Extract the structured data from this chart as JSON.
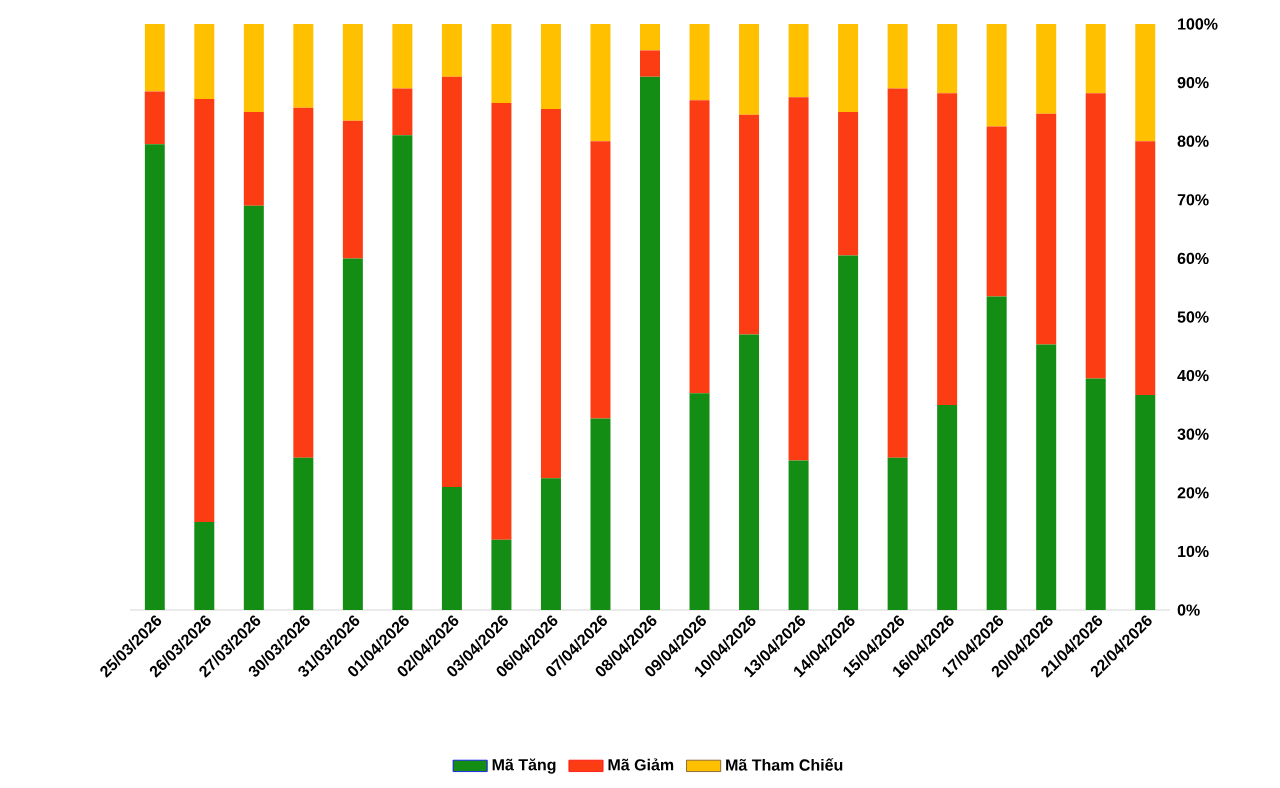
{
  "chart_data": {
    "type": "bar",
    "stacked": true,
    "categories": [
      "25/03/2026",
      "26/03/2026",
      "27/03/2026",
      "30/03/2026",
      "31/03/2026",
      "01/04/2026",
      "02/04/2026",
      "03/04/2026",
      "06/04/2026",
      "07/04/2026",
      "08/04/2026",
      "09/04/2026",
      "10/04/2026",
      "13/04/2026",
      "14/04/2026",
      "15/04/2026",
      "16/04/2026",
      "17/04/2026",
      "20/04/2026",
      "21/04/2026",
      "22/04/2026"
    ],
    "series": [
      {
        "name": "Mã Tăng",
        "color": "#138d13",
        "values": [
          79.5,
          15,
          69,
          26,
          60,
          81,
          21,
          12,
          22.5,
          32.7,
          91,
          37,
          47,
          25.5,
          60.5,
          26,
          35,
          53.5,
          45.3,
          39.5,
          36.7
        ]
      },
      {
        "name": "Mã Giảm",
        "color": "#fc3d14",
        "values": [
          9,
          72.2,
          16,
          59.7,
          23.5,
          8,
          70,
          74.5,
          63,
          47.3,
          4.5,
          50,
          37.5,
          62,
          24.5,
          63,
          53.2,
          29,
          39.4,
          48.7,
          43.3
        ]
      },
      {
        "name": "Mã Tham Chiếu",
        "color": "#ffc000",
        "values": [
          11.5,
          12.8,
          15,
          14.3,
          16.5,
          11,
          9,
          13.5,
          14.5,
          20,
          4.5,
          13,
          15.5,
          12.5,
          15,
          11,
          11.8,
          17.5,
          15.3,
          11.8,
          20
        ]
      }
    ],
    "ylim": [
      0,
      100
    ],
    "yticks": [
      {
        "value": 0,
        "label": "0%"
      },
      {
        "value": 10,
        "label": "10%"
      },
      {
        "value": 20,
        "label": "20%"
      },
      {
        "value": 30,
        "label": "30%"
      },
      {
        "value": 40,
        "label": "40%"
      },
      {
        "value": 50,
        "label": "50%"
      },
      {
        "value": 60,
        "label": "60%"
      },
      {
        "value": 70,
        "label": "70%"
      },
      {
        "value": 80,
        "label": "80%"
      },
      {
        "value": 90,
        "label": "90%"
      },
      {
        "value": 100,
        "label": "100%"
      }
    ],
    "grid": false,
    "legend": "bottom"
  }
}
